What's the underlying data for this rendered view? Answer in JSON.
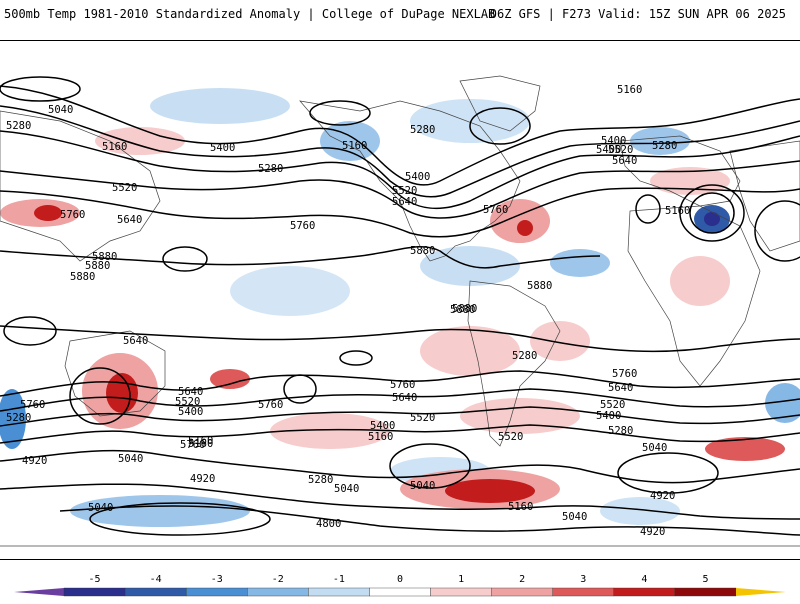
{
  "header": {
    "title_left": "500mb Temp 1981-2010 Standardized Anomaly | College of DuPage NEXLAB",
    "title_right": "06Z GFS | F273 Valid: 15Z SUN APR 06 2025"
  },
  "contour_labels": [
    "5040",
    "5280",
    "5160",
    "5400",
    "5280",
    "5160",
    "5280",
    "5160",
    "5400",
    "5520",
    "5640",
    "5520",
    "5760",
    "5640",
    "5760",
    "5880",
    "5880",
    "5880",
    "5880",
    "5880",
    "5400",
    "5520",
    "5640",
    "5280",
    "5280",
    "5760",
    "5160",
    "5760",
    "5640",
    "5520",
    "5400",
    "5760",
    "5760",
    "5640",
    "5520",
    "5400",
    "5280",
    "5160",
    "5040",
    "5040",
    "4920",
    "4920",
    "4800",
    "5280",
    "5040",
    "5040",
    "5160",
    "5760",
    "5640",
    "5520",
    "5400",
    "5280",
    "5040",
    "4920",
    "4920",
    "5040",
    "5160",
    "5400",
    "5520",
    "5640",
    "5760",
    "5880",
    "5880",
    "5160"
  ],
  "colorbar": {
    "ticks": [
      "-5",
      "-4",
      "-3",
      "-2",
      "-1",
      "0",
      "1",
      "2",
      "3",
      "4",
      "5"
    ],
    "colors": [
      "#2a2e8c",
      "#2f5aa8",
      "#4a8fd4",
      "#86b8e6",
      "#c2dcf2",
      "#ffffff",
      "#f7cccc",
      "#eea2a2",
      "#de5a5a",
      "#c21c1c",
      "#8e0a0a"
    ],
    "min_color": "#6a3ea0",
    "max_color": "#f5c400"
  }
}
